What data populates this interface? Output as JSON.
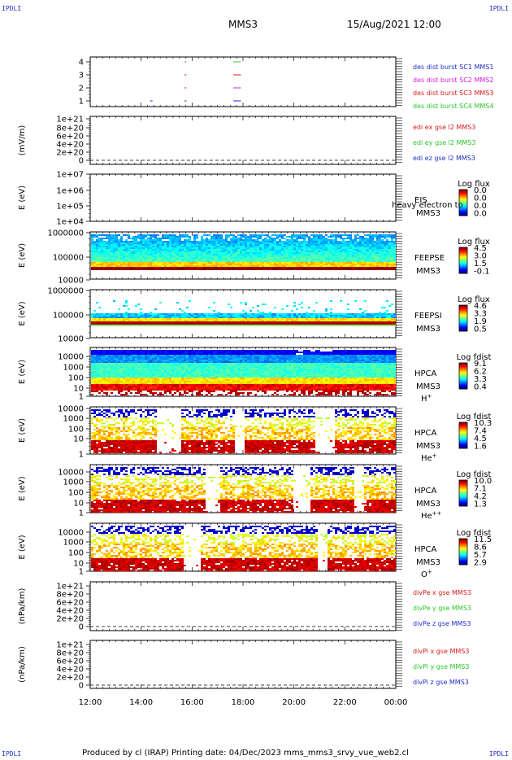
{
  "corners": {
    "tl": "IPDLI",
    "tr": "IPDLI",
    "bl": "IPDLI",
    "br": "IPDLI"
  },
  "header": {
    "mission": "MMS3",
    "datetime": "15/Aug/2021 12:00"
  },
  "footer": {
    "text": "Produced by cl (IRAP)   Printing date: 04/Dec/2023   mms_mms3_srvy_vue_web2.cl"
  },
  "colors": {
    "blue": "#1f2ec8",
    "magenta": "#d81ad8",
    "red": "#d81a1a",
    "green": "#28c828"
  },
  "x_axis": {
    "ticks": [
      "12:00",
      "14:00",
      "16:00",
      "18:00",
      "20:00",
      "22:00",
      "00:00"
    ]
  },
  "chart_data": [
    {
      "id": "burst",
      "type": "line",
      "yticks": [
        "4",
        "3",
        "2",
        "1"
      ],
      "ylim": [
        0.5,
        4.5
      ],
      "legend": [
        {
          "text": "des dist burst SC1 MMS1",
          "color": "#1f2ec8"
        },
        {
          "text": "des dist burst SC2 MMS2",
          "color": "#d81ad8"
        },
        {
          "text": "des dist burst SC3 MMS3",
          "color": "#d81a1a"
        },
        {
          "text": "des dist burst SC4 MMS4",
          "color": "#28c828"
        }
      ],
      "segments": [
        {
          "sc": 1,
          "t0": 14.35,
          "t1": 14.45
        },
        {
          "sc": 1,
          "t0": 15.7,
          "t1": 15.78
        },
        {
          "sc": 1,
          "t0": 17.62,
          "t1": 17.92
        },
        {
          "sc": 2,
          "t0": 15.7,
          "t1": 15.78
        },
        {
          "sc": 2,
          "t0": 17.62,
          "t1": 17.92
        },
        {
          "sc": 3,
          "t0": 15.7,
          "t1": 15.78
        },
        {
          "sc": 3,
          "t0": 17.62,
          "t1": 17.92
        },
        {
          "sc": 4,
          "t0": 15.7,
          "t1": 15.78
        },
        {
          "sc": 4,
          "t0": 17.62,
          "t1": 17.92
        }
      ]
    },
    {
      "id": "edi",
      "type": "line",
      "ylabel": "(mV/m)",
      "yticks": [
        "1e+21",
        "8e+20",
        "6e+20",
        "4e+20",
        "2e+20",
        "0"
      ],
      "ylim": [
        0,
        1e+21
      ],
      "legend": [
        {
          "text": "edi ex gse l2 MMS3",
          "color": "#d81a1a"
        },
        {
          "text": "edi ey gse l2 MMS3",
          "color": "#28c828"
        },
        {
          "text": "edi ez gse l2 MMS3",
          "color": "#1f2ec8"
        }
      ]
    },
    {
      "id": "eis",
      "type": "heatmap",
      "ylabel": "E (eV)",
      "yticks": [
        "1e+07",
        "1e+06",
        "1e+05",
        "1e+04"
      ],
      "ylim": [
        10000.0,
        10000000.0
      ],
      "side": [
        "EIS",
        "MMS3"
      ],
      "overlay": "heavy electron to",
      "cbar_title": "Log flux",
      "cbar": [
        "0.0",
        "0.0",
        "0.0",
        "0.0"
      ],
      "empty": true
    },
    {
      "id": "feepse",
      "type": "heatmap",
      "ylabel": "E (eV)",
      "yticks": [
        "1000000",
        "100000",
        "10000"
      ],
      "ylim": [
        10000.0,
        1000000.0
      ],
      "side": [
        "FEEPSE",
        "MMS3"
      ],
      "cbar_title": "Log flux",
      "cbar": [
        "4.5",
        "3.0",
        "1.5",
        "-0.1"
      ]
    },
    {
      "id": "feepsi",
      "type": "heatmap",
      "ylabel": "E (eV)",
      "yticks": [
        "1000000",
        "100000",
        "10000"
      ],
      "ylim": [
        10000.0,
        1000000.0
      ],
      "side": [
        "FEEPSI",
        "MMS3"
      ],
      "cbar_title": "Log flux",
      "cbar": [
        "4.6",
        "3.3",
        "1.9",
        "0.5"
      ]
    },
    {
      "id": "hpca_h",
      "type": "heatmap",
      "ylabel": "E (eV)",
      "yticks": [
        "10000",
        "1000",
        "100",
        "10",
        "1"
      ],
      "ylim": [
        1,
        30000
      ],
      "side": [
        "HPCA",
        "MMS3"
      ],
      "species": "H",
      "sup": "+",
      "cbar_title": "Log fdist",
      "cbar": [
        "9.1",
        "6.2",
        "3.3",
        "0.4"
      ]
    },
    {
      "id": "hpca_he",
      "type": "heatmap",
      "ylabel": "E (eV)",
      "yticks": [
        "10000",
        "1000",
        "100",
        "10",
        "1"
      ],
      "ylim": [
        1,
        30000
      ],
      "side": [
        "HPCA",
        "MMS3"
      ],
      "species": "He",
      "sup": "+",
      "cbar_title": "Log fdist",
      "cbar": [
        "10.3",
        "7.4",
        "4.5",
        "1.6"
      ]
    },
    {
      "id": "hpca_hepp",
      "type": "heatmap",
      "ylabel": "E (eV)",
      "yticks": [
        "10000",
        "1000",
        "100",
        "10",
        "1"
      ],
      "ylim": [
        1,
        30000
      ],
      "side": [
        "HPCA",
        "MMS3"
      ],
      "species": "He",
      "sup": "++",
      "cbar_title": "Log fdist",
      "cbar": [
        "10.0",
        "7.1",
        "4.2",
        "1.3"
      ]
    },
    {
      "id": "hpca_o",
      "type": "heatmap",
      "ylabel": "E (eV)",
      "yticks": [
        "10000",
        "1000",
        "100",
        "10",
        "1"
      ],
      "ylim": [
        1,
        30000
      ],
      "side": [
        "HPCA",
        "MMS3"
      ],
      "species": "O",
      "sup": "+",
      "cbar_title": "Log fdist",
      "cbar": [
        "11.5",
        "8.6",
        "5.7",
        "2.9"
      ]
    },
    {
      "id": "divpe",
      "type": "line",
      "ylabel": "(nPa/km)",
      "yticks": [
        "1e+21",
        "8e+20",
        "6e+20",
        "4e+20",
        "2e+20",
        "0"
      ],
      "ylim": [
        0,
        1e+21
      ],
      "legend": [
        {
          "text": "divPe x gse MMS3",
          "color": "#d81a1a"
        },
        {
          "text": "divPe y gse MMS3",
          "color": "#28c828"
        },
        {
          "text": "divPe z gse MMS3",
          "color": "#1f2ec8"
        }
      ]
    },
    {
      "id": "divpi",
      "type": "line",
      "ylabel": "(nPa/km)",
      "yticks": [
        "1e+21",
        "8e+20",
        "6e+20",
        "4e+20",
        "2e+20",
        "0"
      ],
      "ylim": [
        0,
        1e+21
      ],
      "legend": [
        {
          "text": "divPi x gse MMS3",
          "color": "#d81a1a"
        },
        {
          "text": "divPi y gse MMS3",
          "color": "#28c828"
        },
        {
          "text": "divPi z gse MMS3",
          "color": "#1f2ec8"
        }
      ]
    }
  ]
}
